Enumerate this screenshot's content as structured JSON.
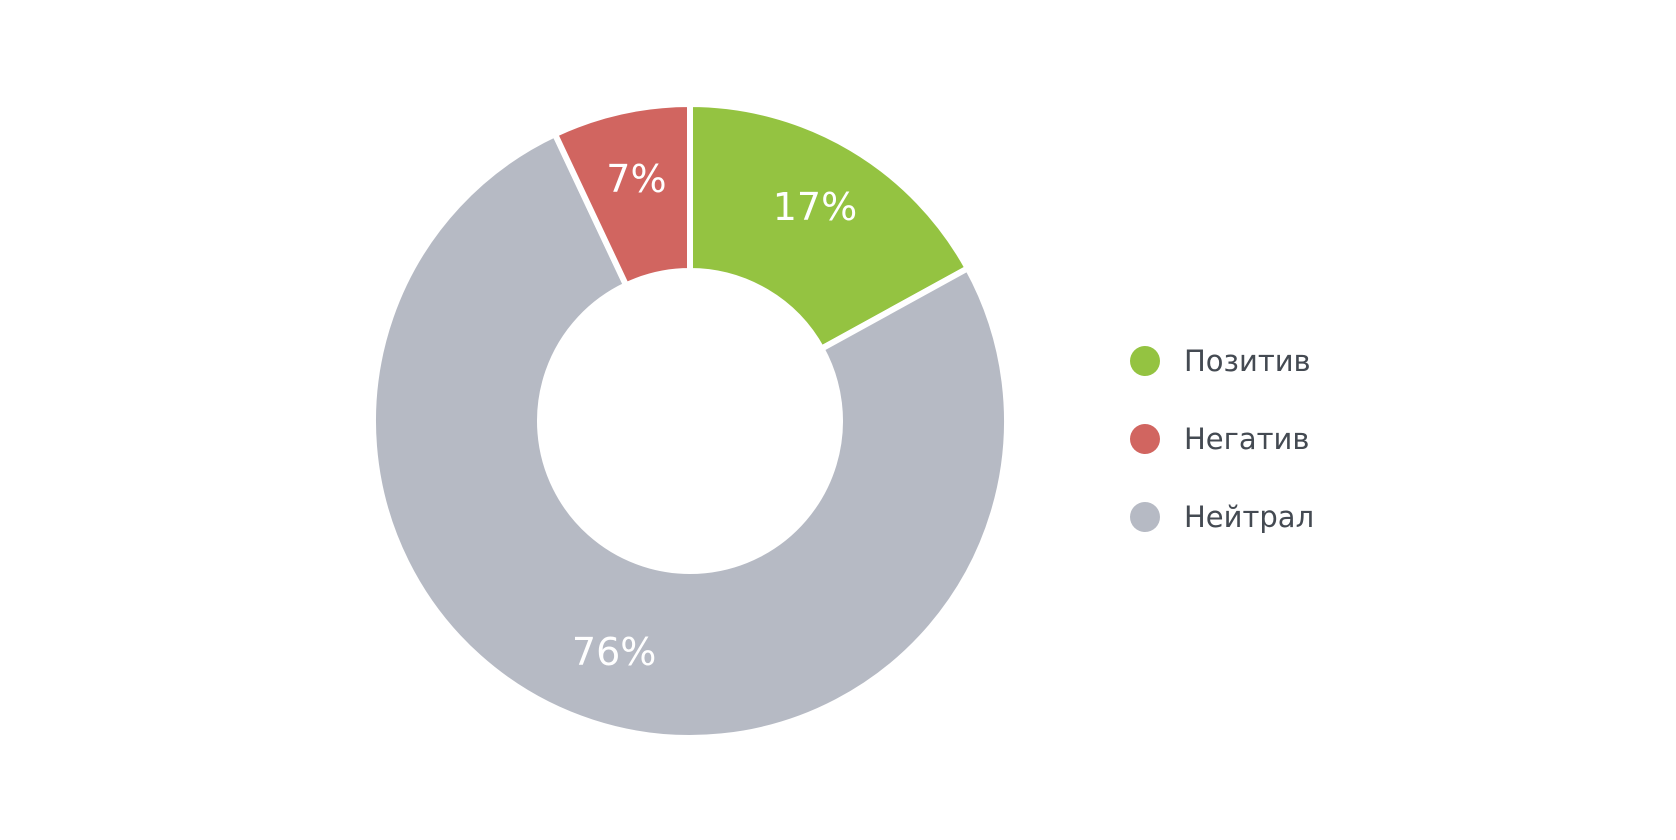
{
  "chart_data": {
    "type": "pie",
    "variant": "donut",
    "categories": [
      "Позитив",
      "Негатив",
      "Нейтрал"
    ],
    "values": [
      17,
      7,
      76
    ],
    "value_labels": [
      "17%",
      "7%",
      "76%"
    ],
    "colors": [
      "#94c341",
      "#d16560",
      "#b6bac4"
    ],
    "start": "top",
    "direction": "clockwise",
    "slice_order": [
      "Позитив",
      "Нейтрал",
      "Негатив"
    ],
    "legend_position": "right",
    "title": ""
  }
}
